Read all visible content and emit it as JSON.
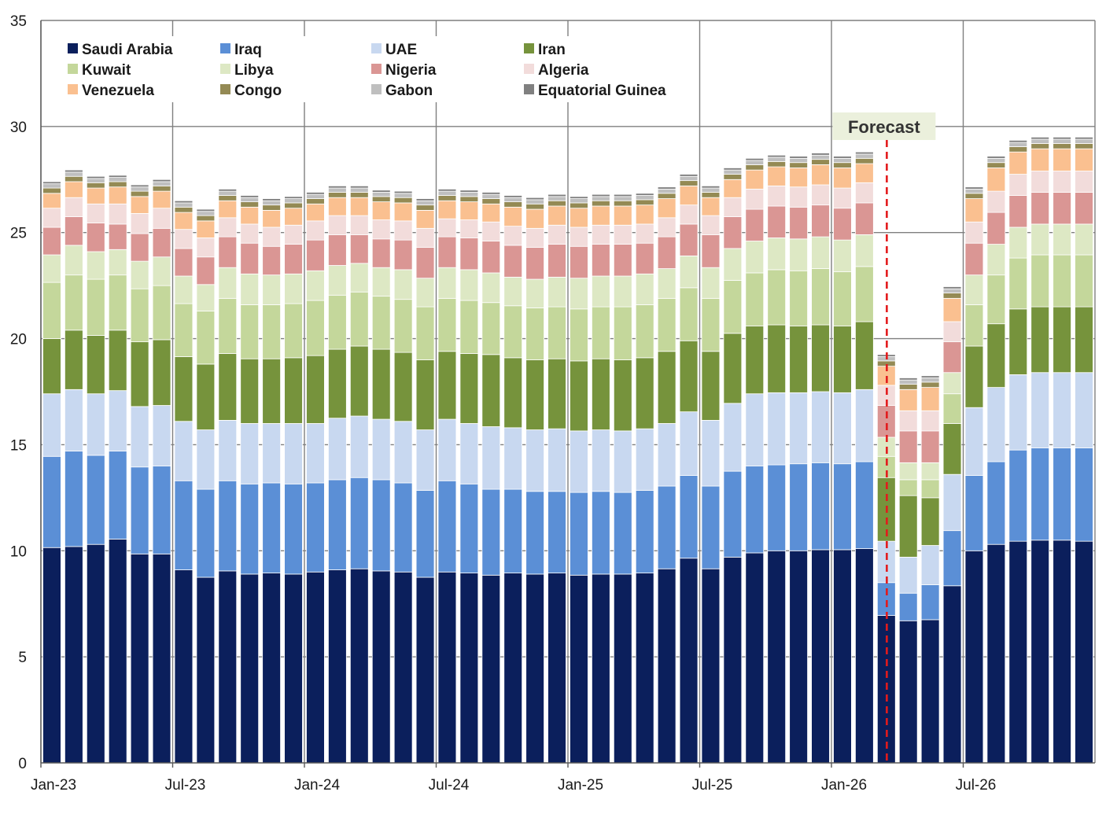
{
  "chart_data": {
    "type": "stacked-bar",
    "title": "",
    "xlabel": "",
    "ylabel": "",
    "ylim": [
      0,
      35
    ],
    "yticks": [
      "0",
      "5",
      "10",
      "15",
      "20",
      "25",
      "30",
      "35"
    ],
    "categories": [
      "Jan-23",
      "Feb-23",
      "Mar-23",
      "Apr-23",
      "May-23",
      "Jun-23",
      "Jul-23",
      "Aug-23",
      "Sep-23",
      "Oct-23",
      "Nov-23",
      "Dec-23",
      "Jan-24",
      "Feb-24",
      "Mar-24",
      "Apr-24",
      "May-24",
      "Jun-24",
      "Jul-24",
      "Aug-24",
      "Sep-24",
      "Oct-24",
      "Nov-24",
      "Dec-24",
      "Jan-25",
      "Feb-25",
      "Mar-25",
      "Apr-25",
      "May-25",
      "Jun-25",
      "Jul-25",
      "Aug-25",
      "Sep-25",
      "Oct-25",
      "Nov-25",
      "Dec-25",
      "Jan-26",
      "Feb-26",
      "Mar-26",
      "Apr-26",
      "May-26",
      "Jun-26",
      "Jul-26",
      "Aug-26",
      "Sep-26",
      "Oct-26",
      "Nov-26",
      "Dec-26"
    ],
    "x_tick_labels": [
      {
        "index": 0,
        "label": "Jan-23"
      },
      {
        "index": 6,
        "label": "Jul-23"
      },
      {
        "index": 12,
        "label": "Jan-24"
      },
      {
        "index": 18,
        "label": "Jul-24"
      },
      {
        "index": 24,
        "label": "Jan-25"
      },
      {
        "index": 30,
        "label": "Jul-25"
      },
      {
        "index": 36,
        "label": "Jan-26"
      },
      {
        "index": 42,
        "label": "Jul-26"
      }
    ],
    "forecast": {
      "label": "Forecast",
      "after_index": 38,
      "line_color": "#e31a1c"
    },
    "legend_position": "top-left",
    "series": [
      {
        "name": "Saudi Arabia",
        "color": "#0b1f5c",
        "values": [
          10.15,
          10.2,
          10.3,
          10.55,
          9.85,
          9.85,
          9.1,
          8.75,
          9.05,
          8.9,
          8.95,
          8.9,
          9.0,
          9.1,
          9.15,
          9.05,
          9.0,
          8.75,
          9.0,
          8.95,
          8.85,
          8.95,
          8.9,
          8.95,
          8.85,
          8.9,
          8.9,
          8.95,
          9.15,
          9.65,
          9.15,
          9.7,
          9.9,
          10.0,
          10.0,
          10.05,
          10.05,
          10.1,
          6.95,
          6.7,
          6.75,
          8.35,
          10.0,
          10.3,
          10.45,
          10.5,
          10.5,
          10.45
        ]
      },
      {
        "name": "Iraq",
        "color": "#5b8fd6",
        "values": [
          4.3,
          4.5,
          4.2,
          4.15,
          4.1,
          4.15,
          4.2,
          4.15,
          4.25,
          4.25,
          4.25,
          4.25,
          4.2,
          4.25,
          4.3,
          4.3,
          4.2,
          4.1,
          4.3,
          4.2,
          4.05,
          3.95,
          3.9,
          3.85,
          3.9,
          3.9,
          3.85,
          3.9,
          3.9,
          3.9,
          3.9,
          4.05,
          4.1,
          4.05,
          4.1,
          4.1,
          4.05,
          4.1,
          1.55,
          1.3,
          1.65,
          2.6,
          3.55,
          3.9,
          4.3,
          4.35,
          4.35,
          4.4
        ]
      },
      {
        "name": "UAE",
        "color": "#c8d8f0",
        "values": [
          2.95,
          2.9,
          2.9,
          2.85,
          2.85,
          2.85,
          2.8,
          2.8,
          2.85,
          2.85,
          2.8,
          2.85,
          2.8,
          2.9,
          2.9,
          2.85,
          2.9,
          2.85,
          2.9,
          2.85,
          2.95,
          2.9,
          2.9,
          2.95,
          2.9,
          2.9,
          2.9,
          2.9,
          2.95,
          3.0,
          3.1,
          3.2,
          3.4,
          3.4,
          3.35,
          3.35,
          3.35,
          3.4,
          1.95,
          1.7,
          1.85,
          2.65,
          3.2,
          3.5,
          3.55,
          3.55,
          3.55,
          3.55
        ]
      },
      {
        "name": "Iran",
        "color": "#76933c",
        "values": [
          2.6,
          2.8,
          2.75,
          2.85,
          3.05,
          3.1,
          3.05,
          3.1,
          3.15,
          3.05,
          3.05,
          3.1,
          3.2,
          3.25,
          3.3,
          3.3,
          3.25,
          3.3,
          3.2,
          3.3,
          3.4,
          3.3,
          3.3,
          3.3,
          3.3,
          3.35,
          3.35,
          3.35,
          3.4,
          3.35,
          3.25,
          3.3,
          3.2,
          3.2,
          3.15,
          3.15,
          3.15,
          3.2,
          3.0,
          2.9,
          2.25,
          2.4,
          2.9,
          3.0,
          3.1,
          3.1,
          3.1,
          3.1
        ]
      },
      {
        "name": "Kuwait",
        "color": "#c4d79b",
        "values": [
          2.65,
          2.6,
          2.65,
          2.6,
          2.5,
          2.55,
          2.5,
          2.5,
          2.6,
          2.55,
          2.55,
          2.55,
          2.6,
          2.55,
          2.55,
          2.5,
          2.5,
          2.5,
          2.5,
          2.5,
          2.45,
          2.45,
          2.45,
          2.45,
          2.45,
          2.45,
          2.5,
          2.5,
          2.5,
          2.5,
          2.5,
          2.5,
          2.5,
          2.6,
          2.6,
          2.65,
          2.55,
          2.6,
          1.0,
          0.75,
          0.85,
          1.4,
          1.95,
          2.3,
          2.4,
          2.45,
          2.45,
          2.45
        ]
      },
      {
        "name": "Libya",
        "color": "#dde8c4",
        "values": [
          1.3,
          1.4,
          1.3,
          1.2,
          1.3,
          1.35,
          1.3,
          1.25,
          1.45,
          1.45,
          1.4,
          1.4,
          1.4,
          1.4,
          1.35,
          1.35,
          1.4,
          1.35,
          1.45,
          1.45,
          1.4,
          1.35,
          1.35,
          1.4,
          1.45,
          1.45,
          1.45,
          1.45,
          1.4,
          1.5,
          1.45,
          1.5,
          1.5,
          1.5,
          1.5,
          1.5,
          1.5,
          1.5,
          0.9,
          0.8,
          0.8,
          1.0,
          1.4,
          1.45,
          1.45,
          1.45,
          1.45,
          1.45
        ]
      },
      {
        "name": "Nigeria",
        "color": "#da9694",
        "values": [
          1.3,
          1.35,
          1.35,
          1.2,
          1.3,
          1.35,
          1.3,
          1.3,
          1.45,
          1.45,
          1.35,
          1.4,
          1.45,
          1.45,
          1.35,
          1.35,
          1.4,
          1.45,
          1.45,
          1.5,
          1.5,
          1.5,
          1.5,
          1.55,
          1.5,
          1.5,
          1.5,
          1.45,
          1.5,
          1.5,
          1.55,
          1.5,
          1.5,
          1.5,
          1.5,
          1.5,
          1.5,
          1.5,
          1.5,
          1.5,
          1.5,
          1.45,
          1.5,
          1.5,
          1.5,
          1.5,
          1.5,
          1.5
        ]
      },
      {
        "name": "Algeria",
        "color": "#f2dcdb",
        "values": [
          0.9,
          0.9,
          0.9,
          0.95,
          0.95,
          0.95,
          0.9,
          0.9,
          0.9,
          0.9,
          0.9,
          0.9,
          0.9,
          0.9,
          0.9,
          0.9,
          0.9,
          0.9,
          0.85,
          0.85,
          0.9,
          0.9,
          0.9,
          0.9,
          0.9,
          0.9,
          0.9,
          0.9,
          0.9,
          0.9,
          0.9,
          0.9,
          0.95,
          0.95,
          0.95,
          0.95,
          0.95,
          0.95,
          0.95,
          0.95,
          0.95,
          0.95,
          1.0,
          1.0,
          1.0,
          1.0,
          1.0,
          1.0
        ]
      },
      {
        "name": "Venezuela",
        "color": "#fac090",
        "values": [
          0.7,
          0.75,
          0.75,
          0.8,
          0.8,
          0.8,
          0.8,
          0.8,
          0.8,
          0.8,
          0.8,
          0.8,
          0.8,
          0.85,
          0.85,
          0.85,
          0.85,
          0.85,
          0.85,
          0.85,
          0.85,
          0.9,
          0.9,
          0.9,
          0.9,
          0.9,
          0.9,
          0.9,
          0.9,
          0.9,
          0.85,
          0.85,
          0.9,
          0.9,
          0.9,
          0.95,
          0.95,
          0.9,
          0.9,
          1.0,
          1.1,
          1.1,
          1.1,
          1.1,
          1.05,
          1.05,
          1.05,
          1.05
        ]
      },
      {
        "name": "Congo",
        "color": "#948a54",
        "values": [
          0.25,
          0.25,
          0.25,
          0.25,
          0.25,
          0.25,
          0.25,
          0.25,
          0.25,
          0.25,
          0.25,
          0.25,
          0.25,
          0.25,
          0.25,
          0.25,
          0.25,
          0.25,
          0.25,
          0.25,
          0.25,
          0.25,
          0.25,
          0.25,
          0.25,
          0.25,
          0.25,
          0.25,
          0.25,
          0.25,
          0.25,
          0.25,
          0.25,
          0.25,
          0.25,
          0.25,
          0.25,
          0.25,
          0.25,
          0.25,
          0.25,
          0.25,
          0.25,
          0.25,
          0.25,
          0.25,
          0.25,
          0.25
        ]
      },
      {
        "name": "Gabon",
        "color": "#bfbfbf",
        "values": [
          0.2,
          0.2,
          0.2,
          0.2,
          0.2,
          0.2,
          0.2,
          0.2,
          0.2,
          0.2,
          0.2,
          0.2,
          0.2,
          0.2,
          0.2,
          0.2,
          0.2,
          0.2,
          0.2,
          0.2,
          0.2,
          0.2,
          0.2,
          0.2,
          0.2,
          0.2,
          0.2,
          0.2,
          0.2,
          0.2,
          0.2,
          0.2,
          0.2,
          0.2,
          0.2,
          0.2,
          0.2,
          0.2,
          0.2,
          0.2,
          0.2,
          0.2,
          0.2,
          0.2,
          0.2,
          0.2,
          0.2,
          0.2
        ]
      },
      {
        "name": "Equatorial Guinea",
        "color": "#808080",
        "values": [
          0.1,
          0.1,
          0.1,
          0.1,
          0.1,
          0.1,
          0.1,
          0.1,
          0.1,
          0.1,
          0.1,
          0.1,
          0.1,
          0.1,
          0.1,
          0.1,
          0.1,
          0.1,
          0.1,
          0.1,
          0.1,
          0.1,
          0.1,
          0.1,
          0.1,
          0.1,
          0.1,
          0.1,
          0.1,
          0.1,
          0.1,
          0.1,
          0.1,
          0.1,
          0.1,
          0.1,
          0.1,
          0.1,
          0.1,
          0.1,
          0.1,
          0.1,
          0.1,
          0.1,
          0.1,
          0.1,
          0.1,
          0.1
        ]
      }
    ]
  }
}
